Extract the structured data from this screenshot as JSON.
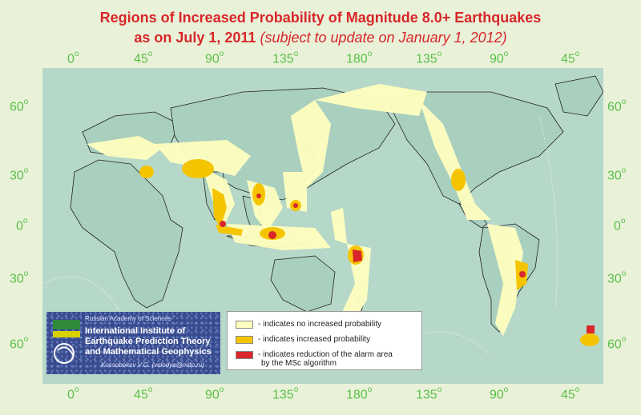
{
  "title": {
    "line1": "Regions of Increased Probability of Magnitude 8.0+ Earthquakes",
    "line2_main": "as on July 1, 2011",
    "line2_sub": "(subject to update on January 1, 2012)"
  },
  "longitude_labels": [
    "0",
    "45",
    "90",
    "135",
    "180",
    "135",
    "90",
    "45"
  ],
  "latitude_labels": [
    "60",
    "30",
    "0",
    "30",
    "60"
  ],
  "degree_mark": "o",
  "legend": {
    "items": [
      {
        "label": "- indicates no increased probability",
        "color": "#ffffc0"
      },
      {
        "label": "- indicates increased probability",
        "color": "#f5c400"
      },
      {
        "label": "- indicates reduction of the alarm area",
        "label2": "by the MSc algorithm",
        "color": "#d8262b"
      }
    ]
  },
  "institute": {
    "academy": "Russian Academy of Sciences",
    "name_line1": "International Institute of",
    "name_line2": "Earthquake Prediction Theory",
    "name_line3": "and Mathematical Geophysics",
    "author": "Kossobokov V.G. (volodya@mitp.ru)"
  },
  "colors": {
    "ocean": "#b6d8c8",
    "land": "#a8d0bd",
    "frame": "#e9f2d8",
    "title": "#d8262b",
    "grid_labels": "#5bbf4a"
  }
}
